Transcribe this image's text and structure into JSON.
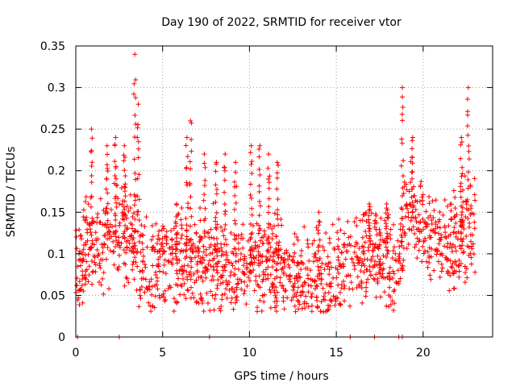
{
  "chart_data": {
    "type": "scatter",
    "title": "Day 190 of 2022, SRMTID for receiver vtor",
    "xlabel": "GPS time / hours",
    "ylabel": "SRMTID / TECUs",
    "xlim": [
      0,
      24
    ],
    "ylim": [
      0,
      0.35
    ],
    "xticks": [
      0,
      5,
      10,
      15,
      20
    ],
    "xtick_labels": [
      "0",
      "5",
      "10",
      "15",
      "20"
    ],
    "yticks": [
      0,
      0.05,
      0.1,
      0.15,
      0.2,
      0.25,
      0.3,
      0.35
    ],
    "ytick_labels": [
      "0",
      "0.05",
      "0.1",
      "0.15",
      "0.2",
      "0.25",
      "0.3",
      "0.35"
    ],
    "grid": true,
    "marker": "plus",
    "color": "#ff0000",
    "series": [
      {
        "name": "SRMTID",
        "profile": {
          "hours": [
            0,
            0.5,
            1,
            1.5,
            2,
            2.5,
            3,
            3.5,
            4,
            4.5,
            5,
            5.5,
            6,
            6.5,
            7,
            7.5,
            8,
            8.5,
            9,
            9.5,
            10,
            10.5,
            11,
            11.5,
            12,
            12.5,
            13,
            13.5,
            14,
            14.5,
            15,
            15.5,
            16,
            16.5,
            17,
            17.5,
            18,
            18.5,
            19,
            19.5,
            20,
            20.5,
            21,
            21.5,
            22,
            22.5,
            23
          ],
          "typical": [
            0.075,
            0.095,
            0.11,
            0.115,
            0.12,
            0.13,
            0.125,
            0.11,
            0.075,
            0.085,
            0.09,
            0.095,
            0.09,
            0.085,
            0.08,
            0.085,
            0.09,
            0.085,
            0.08,
            0.085,
            0.09,
            0.09,
            0.085,
            0.08,
            0.08,
            0.075,
            0.075,
            0.075,
            0.07,
            0.07,
            0.075,
            0.09,
            0.095,
            0.1,
            0.105,
            0.1,
            0.095,
            0.09,
            0.14,
            0.145,
            0.135,
            0.125,
            0.12,
            0.115,
            0.11,
            0.13,
            0.14
          ]
        },
        "peaks": [
          {
            "hour": 0.9,
            "value": 0.25
          },
          {
            "hour": 1.8,
            "value": 0.23
          },
          {
            "hour": 2.3,
            "value": 0.24
          },
          {
            "hour": 2.8,
            "value": 0.23
          },
          {
            "hour": 3.4,
            "value": 0.34
          },
          {
            "hour": 3.6,
            "value": 0.28
          },
          {
            "hour": 5.8,
            "value": 0.16
          },
          {
            "hour": 6.4,
            "value": 0.24
          },
          {
            "hour": 6.6,
            "value": 0.26
          },
          {
            "hour": 7.4,
            "value": 0.22
          },
          {
            "hour": 8.1,
            "value": 0.21
          },
          {
            "hour": 8.6,
            "value": 0.22
          },
          {
            "hour": 9.2,
            "value": 0.21
          },
          {
            "hour": 10.1,
            "value": 0.23
          },
          {
            "hour": 10.6,
            "value": 0.23
          },
          {
            "hour": 11.1,
            "value": 0.22
          },
          {
            "hour": 11.6,
            "value": 0.21
          },
          {
            "hour": 14.0,
            "value": 0.15
          },
          {
            "hour": 16.9,
            "value": 0.16
          },
          {
            "hour": 17.9,
            "value": 0.16
          },
          {
            "hour": 18.8,
            "value": 0.3
          },
          {
            "hour": 19.4,
            "value": 0.24
          },
          {
            "hour": 22.2,
            "value": 0.24
          },
          {
            "hour": 22.6,
            "value": 0.3
          }
        ],
        "zero_points": [
          0.1,
          2.5,
          7.7,
          15.8,
          17.2,
          18.6,
          18.8
        ]
      }
    ]
  }
}
